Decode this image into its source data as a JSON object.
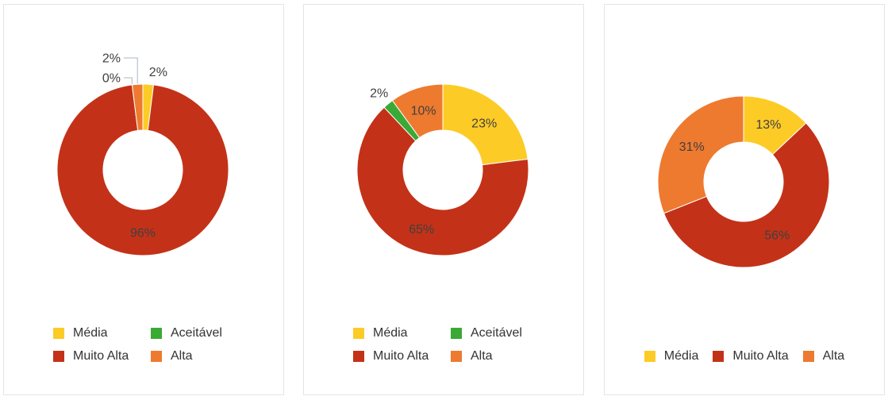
{
  "chart_data": [
    {
      "type": "pie",
      "donut": true,
      "categories": [
        "Média",
        "Muito Alta",
        "Aceitável",
        "Alta"
      ],
      "values": [
        2,
        96,
        0,
        2
      ],
      "labels": [
        "2%",
        "96%",
        "0%",
        "2%"
      ],
      "colors": [
        "#FDCB26",
        "#C33218",
        "#3BA936",
        "#EE7A2F"
      ],
      "legend_placement": "bottom"
    },
    {
      "type": "pie",
      "donut": true,
      "categories": [
        "Média",
        "Muito Alta",
        "Aceitável",
        "Alta"
      ],
      "values": [
        23,
        65,
        2,
        10
      ],
      "labels": [
        "23%",
        "65%",
        "2%",
        "10%"
      ],
      "colors": [
        "#FDCB26",
        "#C33218",
        "#3BA936",
        "#EE7A2F"
      ],
      "legend_placement": "bottom"
    },
    {
      "type": "pie",
      "donut": true,
      "categories": [
        "Média",
        "Muito Alta",
        "Alta"
      ],
      "values": [
        13,
        56,
        31
      ],
      "labels": [
        "13%",
        "56%",
        "31%"
      ],
      "colors": [
        "#FDCB26",
        "#C33218",
        "#EE7A2F"
      ],
      "legend_placement": "bottom"
    }
  ]
}
